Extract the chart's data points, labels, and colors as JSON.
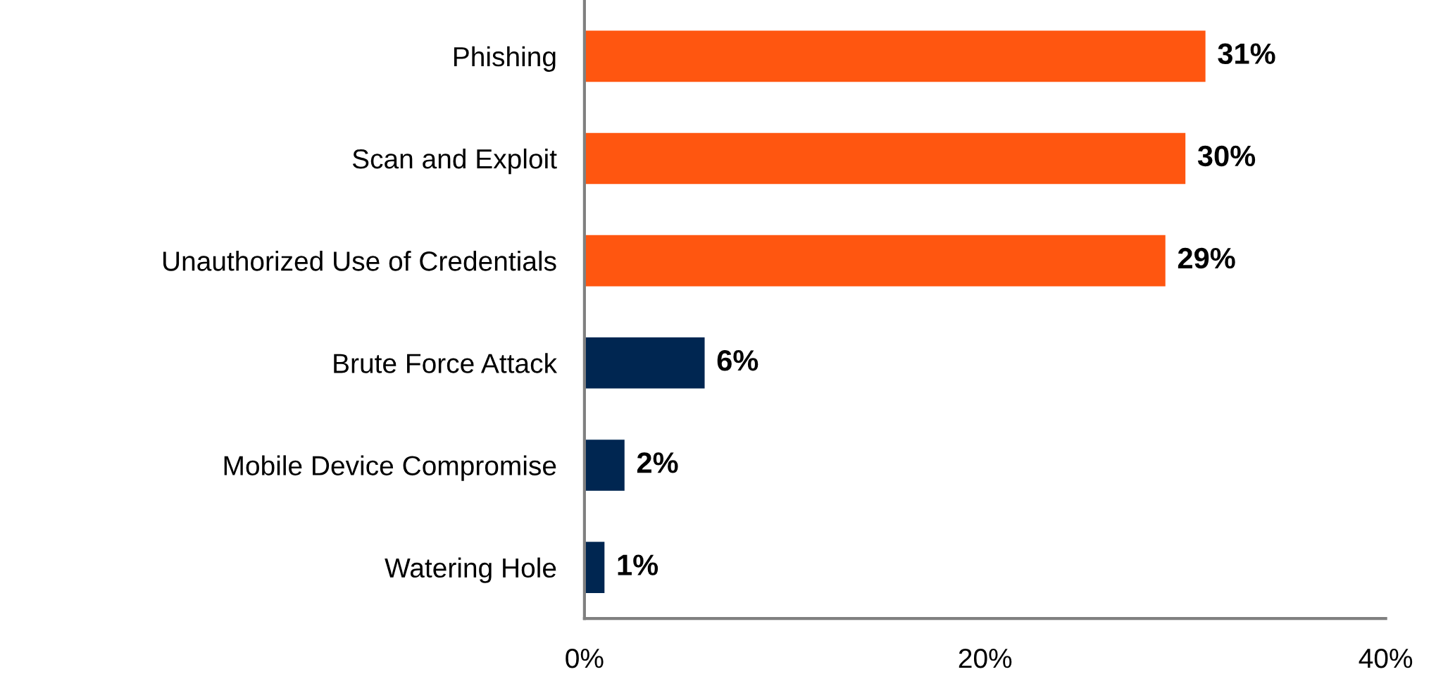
{
  "chart_data": {
    "type": "bar",
    "orientation": "horizontal",
    "categories": [
      "Phishing",
      "Scan and Exploit",
      "Unauthorized Use of Credentials",
      "Brute Force Attack",
      "Mobile Device Compromise",
      "Watering Hole"
    ],
    "values": [
      31,
      30,
      29,
      6,
      2,
      1
    ],
    "colors": [
      "#ff5610",
      "#ff5610",
      "#ff5610",
      "#002651",
      "#002651",
      "#002651"
    ],
    "value_labels": [
      "31%",
      "30%",
      "29%",
      "6%",
      "2%",
      "1%"
    ],
    "xlim": [
      0,
      40
    ],
    "xticks": [
      {
        "value": 0,
        "label": "0%"
      },
      {
        "value": 20,
        "label": "20%"
      },
      {
        "value": 40,
        "label": "40%"
      }
    ],
    "grid": false
  }
}
